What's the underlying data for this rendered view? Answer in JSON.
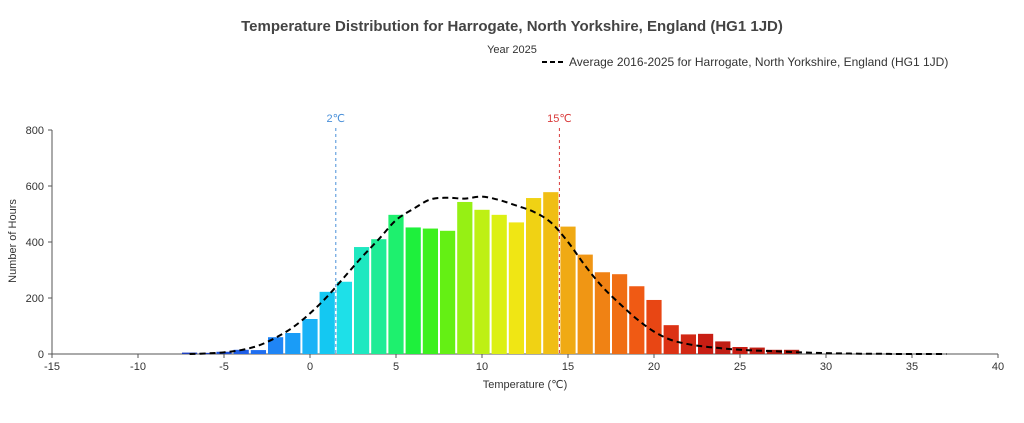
{
  "chart_data": {
    "type": "bar",
    "title": "Temperature Distribution for Harrogate, North Yorkshire, England (HG1 1JD)",
    "subtitle": "Year 2025",
    "xlabel": "Temperature (℃)",
    "ylabel": "Number of Hours",
    "xlim": [
      -15,
      40
    ],
    "ylim": [
      0,
      800
    ],
    "x_ticks": [
      -15,
      -10,
      -5,
      0,
      5,
      10,
      15,
      20,
      25,
      30,
      35,
      40
    ],
    "y_ticks": [
      0,
      200,
      400,
      600,
      800
    ],
    "bin_width": 1,
    "series": [
      {
        "name": "Year 2025",
        "type": "bar",
        "x": [
          -7,
          -6,
          -5,
          -4,
          -3,
          -2,
          -1,
          0,
          1,
          2,
          3,
          4,
          5,
          6,
          7,
          8,
          9,
          10,
          11,
          12,
          13,
          14,
          15,
          16,
          17,
          18,
          19,
          20,
          21,
          22,
          23,
          24,
          25,
          26,
          27,
          28
        ],
        "values": [
          5,
          4,
          8,
          15,
          14,
          60,
          75,
          125,
          222,
          258,
          382,
          410,
          497,
          452,
          448,
          440,
          543,
          515,
          497,
          470,
          557,
          578,
          455,
          355,
          292,
          285,
          242,
          193,
          103,
          70,
          72,
          45,
          25,
          23,
          15,
          15
        ],
        "colors": [
          "#1f3fbf",
          "#1f3fbf",
          "#1f4fd2",
          "#1f5ee6",
          "#1f6ef0",
          "#1f85f5",
          "#1a9cf7",
          "#1ab3f7",
          "#14c8f2",
          "#1ee0e8",
          "#1ee8c0",
          "#1eec96",
          "#1ef06e",
          "#1ef03c",
          "#3cf01e",
          "#64f014",
          "#96f014",
          "#bef014",
          "#dcf014",
          "#f0e614",
          "#f0d214",
          "#f0be14",
          "#f0aa14",
          "#f09614",
          "#f08214",
          "#f06e14",
          "#f05a14",
          "#e84614",
          "#dc3214",
          "#d22814",
          "#c81e14",
          "#c01e14",
          "#c81e14",
          "#c01e14",
          "#b41e14",
          "#b41e14"
        ]
      },
      {
        "name": "Average 2016-2025 for Harrogate, North Yorkshire, England (HG1 1JD)",
        "type": "line",
        "style": "dashed",
        "color": "#000000",
        "x": [
          -7,
          -6,
          -5,
          -4,
          -3,
          -2,
          -1,
          0,
          1,
          2,
          3,
          4,
          5,
          6,
          7,
          8,
          9,
          10,
          11,
          12,
          13,
          14,
          15,
          16,
          17,
          18,
          19,
          20,
          21,
          22,
          23,
          24,
          25,
          26,
          27,
          28,
          29,
          30,
          31,
          32,
          33,
          34,
          35,
          36,
          37
        ],
        "values": [
          0,
          2,
          6,
          14,
          30,
          58,
          95,
          145,
          205,
          275,
          345,
          410,
          478,
          518,
          552,
          558,
          555,
          562,
          550,
          530,
          508,
          470,
          400,
          315,
          240,
          180,
          125,
          80,
          50,
          35,
          26,
          20,
          15,
          12,
          10,
          7,
          5,
          3,
          2,
          1,
          1,
          0,
          0,
          0,
          0
        ]
      }
    ],
    "reference_lines": [
      {
        "x": 1.5,
        "label": "2℃",
        "color": "#4a90d9"
      },
      {
        "x": 14.5,
        "label": "15℃",
        "color": "#d93a3a"
      }
    ],
    "legend_position": "top-right"
  }
}
